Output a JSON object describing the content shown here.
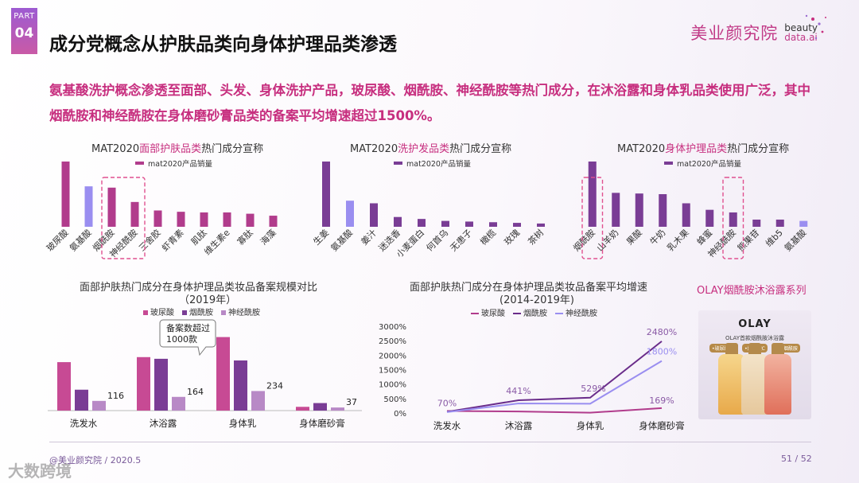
{
  "header": {
    "part_label": "PART",
    "part_number": "04",
    "title": "成分党概念从护肤品类向身体护理品类渗透",
    "brand_cn": "美业颜究院",
    "brand_en_1": "beauty",
    "brand_en_2": "data.ai"
  },
  "summary": "氨基酸洗护概念渗透至面部、头发、身体洗护产品，玻尿酸、烟酰胺、神经酰胺等热门成分，在沐浴露和身体乳品类使用广泛，其中烟酰胺和神经酰胺在身体磨砂膏品类的备案平均增速超过1500%。",
  "colors": {
    "magenta": "#b13c8c",
    "violet": "#7a3d95",
    "lavender": "#9a8ef0",
    "accent_text": "#c72f7f"
  },
  "chart_data": [
    {
      "id": "face-care",
      "type": "bar",
      "title_prefix": "MAT2020",
      "title_highlight": "面部护肤品类",
      "title_suffix": "热门成分宣称",
      "legend": "mat2020产品销量",
      "categories": [
        "玻尿酸",
        "氨基酸",
        "烟酰胺",
        "神经酰胺",
        "三舍胶",
        "虾青素",
        "肌肽",
        "维生素e",
        "寡肽",
        "海藻"
      ],
      "values": [
        100,
        62,
        60,
        38,
        25,
        23,
        22,
        22,
        20,
        17
      ],
      "ylim": [
        0,
        100
      ],
      "highlight_indices": [
        1
      ],
      "boxed_categories": [
        "烟酰胺",
        "神经酰胺"
      ],
      "value_unit": "relative"
    },
    {
      "id": "hair-wash",
      "type": "bar",
      "title_prefix": "MAT2020",
      "title_highlight": "洗护发品类",
      "title_suffix": "热门成分宣称",
      "legend": "mat2020产品销量",
      "categories": [
        "生姜",
        "氨基酸",
        "姜汁",
        "迷迭香",
        "小麦蛋白",
        "何首乌",
        "无患子",
        "橄榄",
        "玫瑰",
        "茶树"
      ],
      "values": [
        100,
        40,
        36,
        15,
        12,
        9,
        8,
        7,
        6,
        5
      ],
      "ylim": [
        0,
        100
      ],
      "highlight_indices": [
        1
      ],
      "boxed_categories": [],
      "value_unit": "relative"
    },
    {
      "id": "body-care",
      "type": "bar",
      "title_prefix": "MAT2020",
      "title_highlight": "身体护理品类",
      "title_suffix": "热门成分宣称",
      "legend": "mat2020产品销量",
      "categories": [
        "烟酰胺",
        "山羊奶",
        "果酸",
        "牛奶",
        "乳木果",
        "蜂蜜",
        "神经酰胺",
        "熊果苷",
        "维b5",
        "氨基酸"
      ],
      "values": [
        100,
        52,
        51,
        50,
        36,
        26,
        22,
        11,
        11,
        9
      ],
      "ylim": [
        0,
        100
      ],
      "highlight_indices": [
        9
      ],
      "boxed_categories": [
        "烟酰胺",
        "神经酰胺"
      ],
      "value_unit": "relative"
    },
    {
      "id": "filing-scale",
      "type": "bar",
      "title": "面部护肤热门成分在身体护理品类妆品备案规模对比",
      "subtitle": "（2019年）",
      "series": [
        {
          "name": "玻尿酸",
          "values": [
            580,
            640,
            880,
            45
          ]
        },
        {
          "name": "烟酰胺",
          "values": [
            250,
            620,
            600,
            90
          ]
        },
        {
          "name": "神经酰胺",
          "values": [
            116,
            164,
            234,
            37
          ]
        }
      ],
      "categories": [
        "洗发水",
        "沐浴露",
        "身体乳",
        "身体磨砂膏"
      ],
      "data_labels": {
        "神经酰胺": [
          "116",
          "164",
          "234",
          "37"
        ]
      },
      "callout": "备案数超过1000款",
      "ylim": [
        0,
        1000
      ]
    },
    {
      "id": "filing-growth",
      "type": "line",
      "title": "面部护肤热门成分在身体护理品类妆品备案平均增速",
      "subtitle": "(2014-2019年)",
      "categories": [
        "洗发水",
        "沐浴露",
        "身体乳",
        "身体磨砂膏"
      ],
      "series": [
        {
          "name": "玻尿酸",
          "values": [
            70,
            50,
            10,
            169
          ]
        },
        {
          "name": "烟酰胺",
          "values": [
            40,
            441,
            529,
            2480
          ]
        },
        {
          "name": "神经酰胺",
          "values": [
            30,
            330,
            320,
            1800
          ]
        }
      ],
      "data_labels": [
        {
          "series": "玻尿酸",
          "index": 0,
          "text": "70%"
        },
        {
          "series": "烟酰胺",
          "index": 1,
          "text": "441%"
        },
        {
          "series": "烟酰胺",
          "index": 2,
          "text": "529%"
        },
        {
          "series": "烟酰胺",
          "index": 3,
          "text": "2480%"
        },
        {
          "series": "神经酰胺",
          "index": 3,
          "text": "1800%"
        },
        {
          "series": "玻尿酸",
          "index": 3,
          "text": "169%"
        }
      ],
      "yticks": [
        "3000%",
        "2500%",
        "2000%",
        "1500%",
        "1000%",
        "500%",
        "0%"
      ],
      "ylim": [
        0,
        3000
      ]
    }
  ],
  "olay": {
    "title": "OLAY烟酰胺沐浴露系列",
    "logo": "OLAY",
    "subtitle": "OLAY首款烟酰胺沐浴露",
    "tags": [
      "•玻尿酸",
      "•烟酰胺C",
      "•烟酰胺"
    ]
  },
  "footer": {
    "left": "@美业颜究院 / 2020.5",
    "right": "51 / 52",
    "watermark": "大数跨境"
  }
}
